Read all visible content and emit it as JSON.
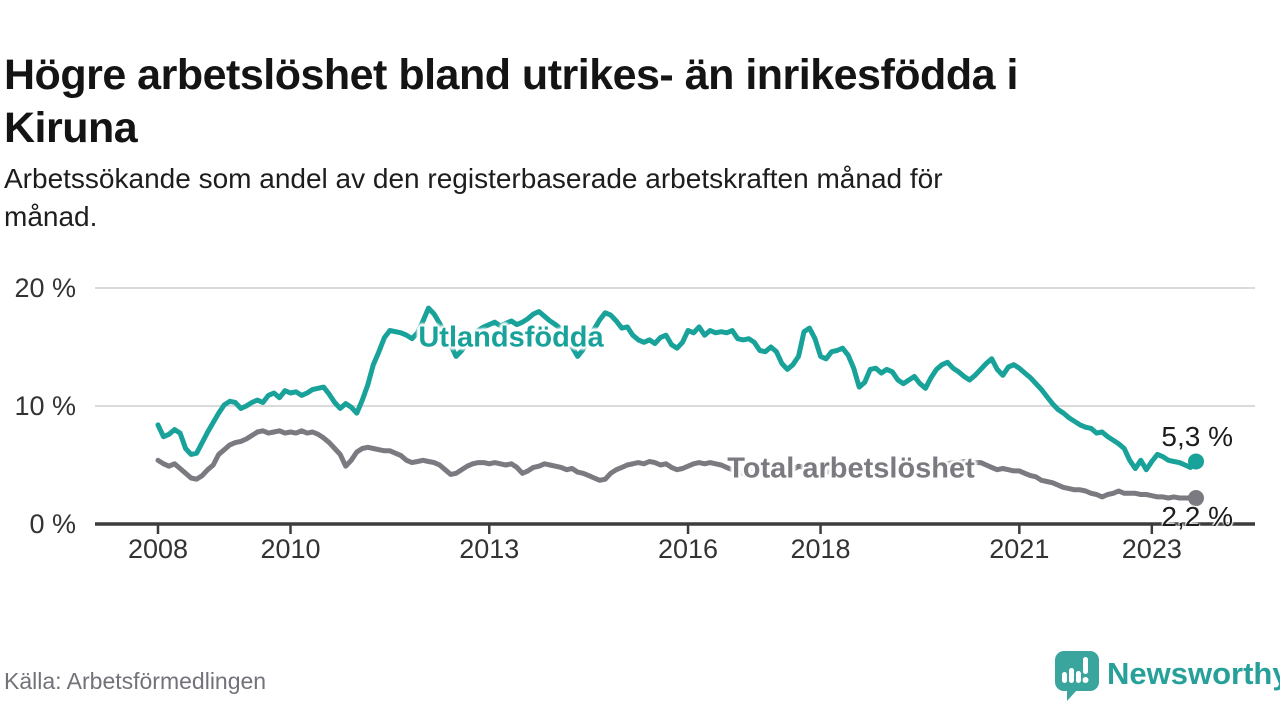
{
  "header": {
    "title_lines": [
      "Högre arbetslöshet bland utrikes- än inrikesfödda i",
      "Kiruna"
    ],
    "subtitle_lines": [
      "Arbetssökande som andel av den registerbaserade arbetskraften månad för",
      "månad."
    ]
  },
  "footer": {
    "source": "Källa: Arbetsförmedlingen",
    "brand": "Newsworthy"
  },
  "colors": {
    "accent_teal": "#18a29a",
    "gray_line": "#7a7a80",
    "axis": "#3c3c3c",
    "grid": "#dadada",
    "tick_label": "#333333",
    "end_label": "#1c1c1c",
    "source_text": "#72727a",
    "logo_teal": "#3aa59d"
  },
  "chart_data": {
    "type": "line",
    "title": "Högre arbetslöshet bland utrikes- än inrikesfödda i Kiruna",
    "subtitle": "Arbetssökande som andel av den registerbaserade arbetskraften månad för månad.",
    "frequency": "monthly",
    "x_start": "2008-01",
    "x_end": "2023-09",
    "ylim": [
      0,
      20
    ],
    "grid": "horizontal-only",
    "legend": "inline-labels",
    "y_ticks": [
      {
        "value": 0,
        "label": "0 %"
      },
      {
        "value": 10,
        "label": "10 %"
      },
      {
        "value": 20,
        "label": "20 %"
      }
    ],
    "x_ticks": [
      {
        "year": 2008,
        "label": "2008"
      },
      {
        "year": 2010,
        "label": "2010"
      },
      {
        "year": 2013,
        "label": "2013"
      },
      {
        "year": 2016,
        "label": "2016"
      },
      {
        "year": 2018,
        "label": "2018"
      },
      {
        "year": 2021,
        "label": "2021"
      },
      {
        "year": 2023,
        "label": "2023"
      }
    ],
    "series": [
      {
        "name": "Utlandsfödda",
        "color": "#18a29a",
        "end_label": "5,3 %",
        "last_value": 5.3,
        "values": [
          8.4,
          7.4,
          7.6,
          8.0,
          7.7,
          6.4,
          5.9,
          6.0,
          6.9,
          7.8,
          8.6,
          9.4,
          10.1,
          10.4,
          10.3,
          9.8,
          10.0,
          10.3,
          10.5,
          10.3,
          10.9,
          11.1,
          10.7,
          11.3,
          11.1,
          11.2,
          10.9,
          11.1,
          11.4,
          11.5,
          11.6,
          11.0,
          10.3,
          9.8,
          10.2,
          9.9,
          9.4,
          10.5,
          11.8,
          13.5,
          14.6,
          15.8,
          16.4,
          16.3,
          16.2,
          16.0,
          15.7,
          16.2,
          17.2,
          18.3,
          17.8,
          17.0,
          16.2,
          15.2,
          14.2,
          14.7,
          15.4,
          16.0,
          16.4,
          16.7,
          16.9,
          17.1,
          16.8,
          17.0,
          17.2,
          16.9,
          17.1,
          17.4,
          17.8,
          18.0,
          17.6,
          17.2,
          16.9,
          16.5,
          15.8,
          15.0,
          14.2,
          14.8,
          15.7,
          16.5,
          17.3,
          17.9,
          17.7,
          17.2,
          16.6,
          16.7,
          16.0,
          15.6,
          15.4,
          15.6,
          15.3,
          15.8,
          16.0,
          15.2,
          14.9,
          15.4,
          16.4,
          16.2,
          16.7,
          16.0,
          16.4,
          16.2,
          16.3,
          16.2,
          16.4,
          15.7,
          15.6,
          15.7,
          15.4,
          14.7,
          14.6,
          15.0,
          14.6,
          13.6,
          13.1,
          13.5,
          14.2,
          16.3,
          16.6,
          15.7,
          14.2,
          14.0,
          14.6,
          14.7,
          14.9,
          14.3,
          13.2,
          11.6,
          12.0,
          13.1,
          13.2,
          12.8,
          13.1,
          12.9,
          12.2,
          11.9,
          12.2,
          12.5,
          11.9,
          11.5,
          12.4,
          13.1,
          13.5,
          13.7,
          13.2,
          12.9,
          12.5,
          12.2,
          12.6,
          13.1,
          13.6,
          14.0,
          13.1,
          12.6,
          13.3,
          13.5,
          13.2,
          12.8,
          12.4,
          11.9,
          11.4,
          10.8,
          10.2,
          9.7,
          9.4,
          9.0,
          8.7,
          8.4,
          8.2,
          8.1,
          7.7,
          7.8,
          7.4,
          7.1,
          6.8,
          6.4,
          5.4,
          4.7,
          5.4,
          4.6,
          5.3,
          5.9,
          5.7,
          5.4,
          5.3,
          5.2,
          5.0,
          4.8,
          5.3
        ]
      },
      {
        "name": "Total arbetslöshet",
        "color": "#7a7a80",
        "end_label": "2,2 %",
        "last_value": 2.2,
        "values": [
          5.4,
          5.1,
          4.9,
          5.1,
          4.7,
          4.3,
          3.9,
          3.8,
          4.1,
          4.6,
          5.0,
          5.9,
          6.3,
          6.7,
          6.9,
          7.0,
          7.2,
          7.5,
          7.8,
          7.9,
          7.7,
          7.8,
          7.9,
          7.7,
          7.8,
          7.7,
          7.9,
          7.7,
          7.8,
          7.6,
          7.3,
          6.9,
          6.4,
          5.9,
          4.9,
          5.4,
          6.1,
          6.4,
          6.5,
          6.4,
          6.3,
          6.2,
          6.2,
          6.0,
          5.8,
          5.4,
          5.2,
          5.3,
          5.4,
          5.3,
          5.2,
          5.0,
          4.6,
          4.2,
          4.3,
          4.6,
          4.9,
          5.1,
          5.2,
          5.2,
          5.1,
          5.2,
          5.1,
          5.0,
          5.1,
          4.8,
          4.3,
          4.5,
          4.8,
          4.9,
          5.1,
          5.0,
          4.9,
          4.8,
          4.6,
          4.7,
          4.4,
          4.3,
          4.1,
          3.9,
          3.7,
          3.8,
          4.3,
          4.6,
          4.8,
          5.0,
          5.1,
          5.2,
          5.1,
          5.3,
          5.2,
          5.0,
          5.1,
          4.8,
          4.6,
          4.7,
          4.9,
          5.1,
          5.2,
          5.1,
          5.2,
          5.1,
          5.0,
          4.8,
          4.6,
          4.4,
          4.3,
          4.5,
          4.7,
          4.6,
          4.5,
          4.4,
          4.5,
          4.3,
          4.4,
          4.6,
          4.9,
          4.8,
          4.7,
          4.6,
          4.5,
          4.4,
          4.5,
          4.4,
          4.6,
          4.5,
          4.4,
          4.6,
          4.7,
          4.8,
          4.9,
          4.9,
          4.9,
          4.8,
          4.7,
          4.8,
          4.7,
          4.8,
          4.9,
          4.9,
          5.0,
          5.0,
          5.1,
          5.1,
          5.2,
          5.2,
          5.3,
          5.3,
          5.2,
          5.2,
          5.0,
          4.8,
          4.6,
          4.7,
          4.6,
          4.5,
          4.5,
          4.3,
          4.1,
          4.0,
          3.7,
          3.6,
          3.5,
          3.3,
          3.1,
          3.0,
          2.9,
          2.9,
          2.8,
          2.6,
          2.5,
          2.3,
          2.5,
          2.6,
          2.8,
          2.6,
          2.6,
          2.6,
          2.5,
          2.5,
          2.4,
          2.3,
          2.3,
          2.2,
          2.3,
          2.2,
          2.2,
          2.2,
          2.2
        ]
      }
    ]
  }
}
